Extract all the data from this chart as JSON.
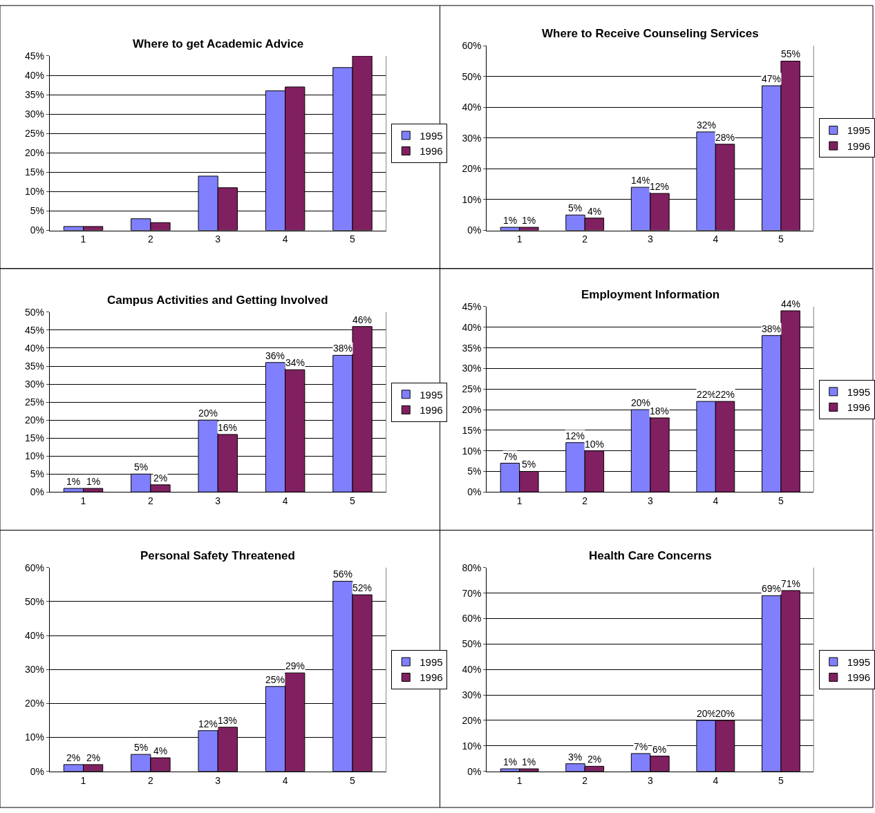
{
  "chart_data": [
    {
      "type": "bar",
      "title": "Where to get Academic Advice",
      "categories": [
        "1",
        "2",
        "3",
        "4",
        "5"
      ],
      "ylim": [
        0,
        45
      ],
      "yticks": [
        {
          "value": 0,
          "label": "0%"
        },
        {
          "value": 5,
          "label": "5%"
        },
        {
          "value": 10,
          "label": "10%"
        },
        {
          "value": 15,
          "label": "15%"
        },
        {
          "value": 20,
          "label": "20%"
        },
        {
          "value": 25,
          "label": "25%"
        },
        {
          "value": 30,
          "label": "30%"
        },
        {
          "value": 35,
          "label": "35%"
        },
        {
          "value": 40,
          "label": "40%"
        },
        {
          "value": 45,
          "label": "45%"
        }
      ],
      "grid": "y",
      "legend": "right",
      "series": [
        {
          "name": "1995",
          "color": "#8080ff",
          "values": [
            1,
            3,
            14,
            36,
            42
          ]
        },
        {
          "name": "1996",
          "color": "#802060",
          "values": [
            1,
            2,
            11,
            37,
            45
          ]
        }
      ]
    },
    {
      "type": "bar",
      "title": "Where to Receive Counseling Services",
      "categories": [
        "1",
        "2",
        "3",
        "4",
        "5"
      ],
      "ylim": [
        0,
        60
      ],
      "yticks": [
        {
          "value": 0,
          "label": "0%"
        },
        {
          "value": 10,
          "label": "10%"
        },
        {
          "value": 20,
          "label": "20%"
        },
        {
          "value": 30,
          "label": "30%"
        },
        {
          "value": 40,
          "label": "40%"
        },
        {
          "value": 50,
          "label": "50%"
        },
        {
          "value": 60,
          "label": "60%"
        }
      ],
      "grid": "y",
      "legend": "right",
      "series": [
        {
          "name": "1995",
          "color": "#8080ff",
          "values": [
            1,
            5,
            14,
            32,
            47
          ],
          "value_labels": [
            "1%",
            "5%",
            "14%",
            "32%",
            "47%"
          ]
        },
        {
          "name": "1996",
          "color": "#802060",
          "values": [
            1,
            4,
            12,
            28,
            55
          ],
          "value_labels": [
            "1%",
            "4%",
            "12%",
            "28%",
            "55%"
          ]
        }
      ]
    },
    {
      "type": "bar",
      "title": "Campus Activities and Getting Involved",
      "categories": [
        "1",
        "2",
        "3",
        "4",
        "5"
      ],
      "ylim": [
        0,
        50
      ],
      "yticks": [
        {
          "value": 0,
          "label": "0%"
        },
        {
          "value": 5,
          "label": "5%"
        },
        {
          "value": 10,
          "label": "10%"
        },
        {
          "value": 15,
          "label": "15%"
        },
        {
          "value": 20,
          "label": "20%"
        },
        {
          "value": 25,
          "label": "25%"
        },
        {
          "value": 30,
          "label": "30%"
        },
        {
          "value": 35,
          "label": "35%"
        },
        {
          "value": 40,
          "label": "40%"
        },
        {
          "value": 45,
          "label": "45%"
        },
        {
          "value": 50,
          "label": "50%"
        }
      ],
      "grid": "y",
      "legend": "right",
      "series": [
        {
          "name": "1995",
          "color": "#8080ff",
          "values": [
            1,
            5,
            20,
            36,
            38
          ],
          "value_labels": [
            "1%",
            "5%",
            "20%",
            "36%",
            "38%"
          ]
        },
        {
          "name": "1996",
          "color": "#802060",
          "values": [
            1,
            2,
            16,
            34,
            46
          ],
          "value_labels": [
            "1%",
            "2%",
            "16%",
            "34%",
            "46%"
          ]
        }
      ]
    },
    {
      "type": "bar",
      "title": "Employment Information",
      "categories": [
        "1",
        "2",
        "3",
        "4",
        "5"
      ],
      "ylim": [
        0,
        45
      ],
      "yticks": [
        {
          "value": 0,
          "label": "0%"
        },
        {
          "value": 5,
          "label": "5%"
        },
        {
          "value": 10,
          "label": "10%"
        },
        {
          "value": 15,
          "label": "15%"
        },
        {
          "value": 20,
          "label": "20%"
        },
        {
          "value": 25,
          "label": "25%"
        },
        {
          "value": 30,
          "label": "30%"
        },
        {
          "value": 35,
          "label": "35%"
        },
        {
          "value": 40,
          "label": "40%"
        },
        {
          "value": 45,
          "label": "45%"
        }
      ],
      "grid": "y",
      "legend": "right",
      "series": [
        {
          "name": "1995",
          "color": "#8080ff",
          "values": [
            7,
            12,
            20,
            22,
            38
          ],
          "value_labels": [
            "7%",
            "12%",
            "20%",
            "22%",
            "38%"
          ]
        },
        {
          "name": "1996",
          "color": "#802060",
          "values": [
            5,
            10,
            18,
            22,
            44
          ],
          "value_labels": [
            "5%",
            "10%",
            "18%",
            "22%",
            "44%"
          ]
        }
      ]
    },
    {
      "type": "bar",
      "title": "Personal Safety Threatened",
      "categories": [
        "1",
        "2",
        "3",
        "4",
        "5"
      ],
      "ylim": [
        0,
        60
      ],
      "yticks": [
        {
          "value": 0,
          "label": "0%"
        },
        {
          "value": 10,
          "label": "10%"
        },
        {
          "value": 20,
          "label": "20%"
        },
        {
          "value": 30,
          "label": "30%"
        },
        {
          "value": 40,
          "label": "40%"
        },
        {
          "value": 50,
          "label": "50%"
        },
        {
          "value": 60,
          "label": "60%"
        }
      ],
      "grid": "y",
      "legend": "right",
      "series": [
        {
          "name": "1995",
          "color": "#8080ff",
          "values": [
            2,
            5,
            12,
            25,
            56
          ],
          "value_labels": [
            "2%",
            "5%",
            "12%",
            "25%",
            "56%"
          ]
        },
        {
          "name": "1996",
          "color": "#802060",
          "values": [
            2,
            4,
            13,
            29,
            52
          ],
          "value_labels": [
            "2%",
            "4%",
            "13%",
            "29%",
            "52%"
          ]
        }
      ]
    },
    {
      "type": "bar",
      "title": "Health Care Concerns",
      "categories": [
        "1",
        "2",
        "3",
        "4",
        "5"
      ],
      "ylim": [
        0,
        80
      ],
      "yticks": [
        {
          "value": 0,
          "label": "0%"
        },
        {
          "value": 10,
          "label": "10%"
        },
        {
          "value": 20,
          "label": "20%"
        },
        {
          "value": 30,
          "label": "30%"
        },
        {
          "value": 40,
          "label": "40%"
        },
        {
          "value": 50,
          "label": "50%"
        },
        {
          "value": 60,
          "label": "60%"
        },
        {
          "value": 70,
          "label": "70%"
        },
        {
          "value": 80,
          "label": "80%"
        }
      ],
      "grid": "y",
      "legend": "right",
      "series": [
        {
          "name": "1995",
          "color": "#8080ff",
          "values": [
            1,
            3,
            7,
            20,
            69
          ],
          "value_labels": [
            "1%",
            "3%",
            "7%",
            "20%",
            "69%"
          ]
        },
        {
          "name": "1996",
          "color": "#802060",
          "values": [
            1,
            2,
            6,
            20,
            71
          ],
          "value_labels": [
            "1%",
            "2%",
            "6%",
            "20%",
            "71%"
          ]
        }
      ]
    }
  ]
}
